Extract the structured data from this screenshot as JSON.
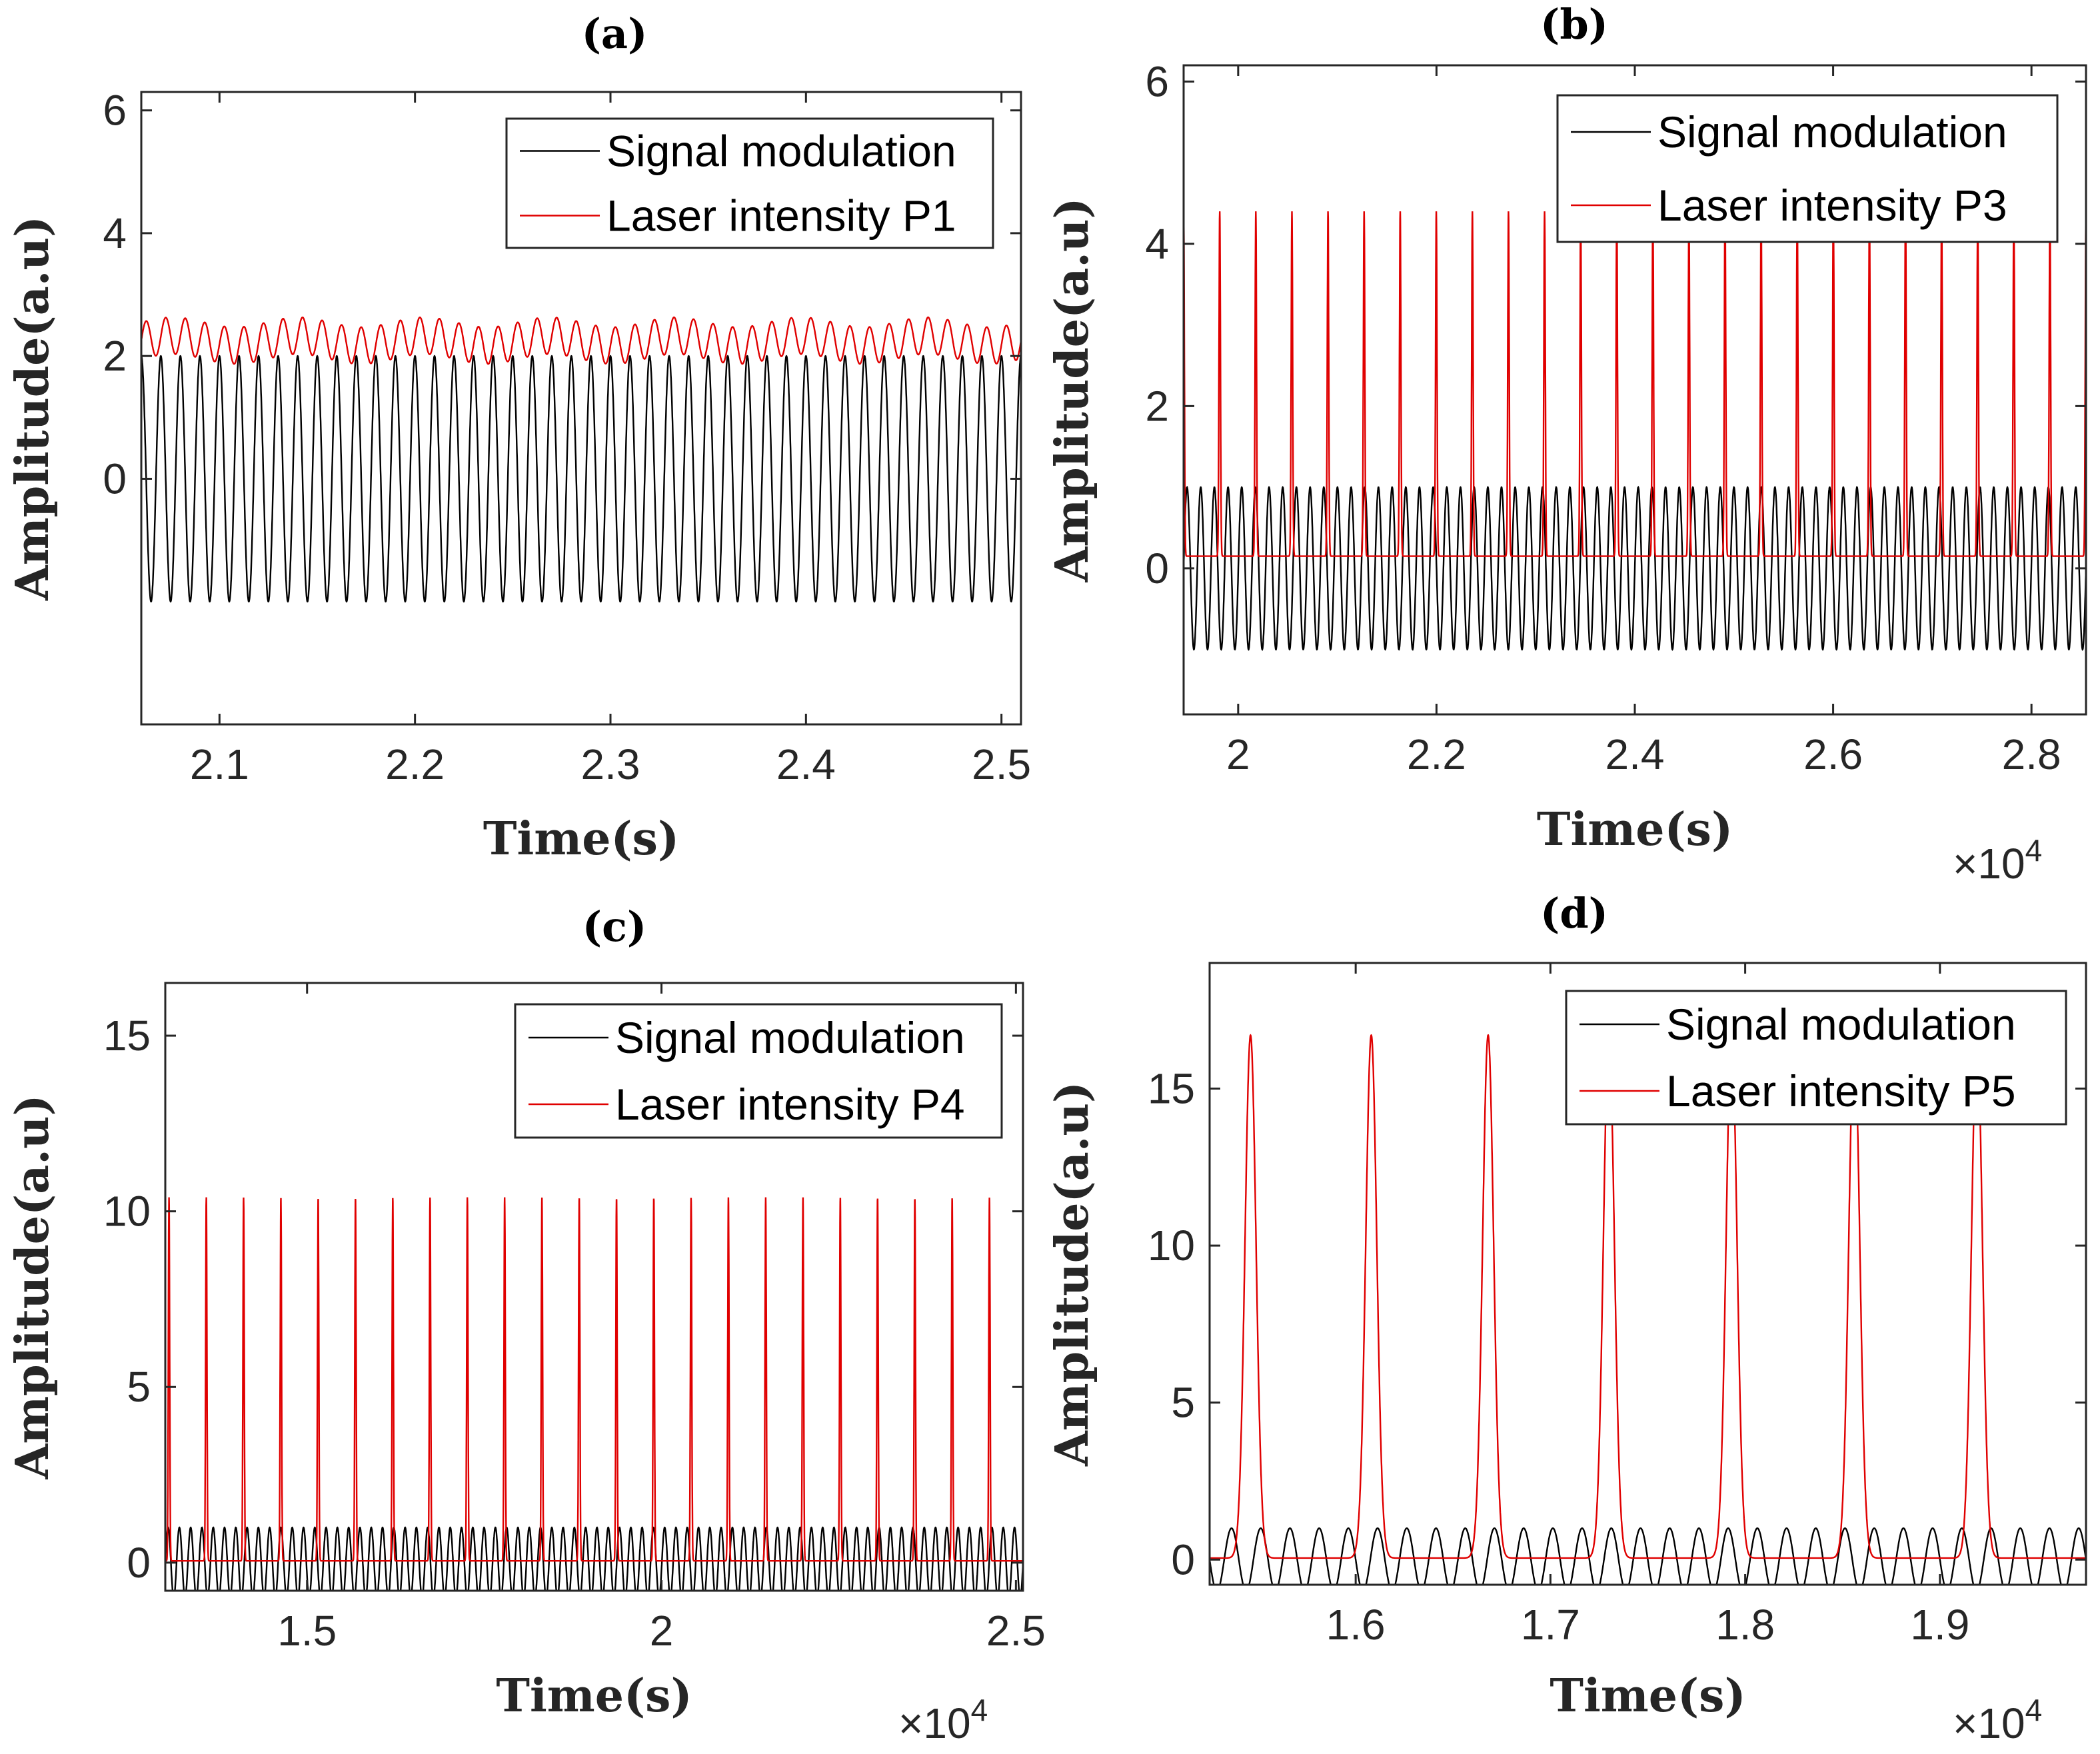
{
  "chart_data": [
    {
      "id": "a",
      "type": "line",
      "title": "(a)",
      "xlabel": "Time(s)",
      "ylabel": "Amplitude(a.u)",
      "xlim": [
        2.06,
        2.51
      ],
      "ylim": [
        -4,
        6.3
      ],
      "xticks": [
        2.1,
        2.2,
        2.3,
        2.4,
        2.5
      ],
      "xtick_labels": [
        "2.1",
        "2.2",
        "2.3",
        "2.4",
        "2.5"
      ],
      "yticks": [
        0,
        2,
        4,
        6
      ],
      "ytick_labels": [
        "0",
        "2",
        "4",
        "6"
      ],
      "x_exponent": "",
      "legend": [
        "Signal modulation",
        "Laser intensity P1"
      ],
      "legend_position": "top-right",
      "series": [
        {
          "name": "Signal modulation",
          "color": "#000000",
          "kind": "sine",
          "amplitude": 2,
          "offset": 0,
          "cycles": 45,
          "phase": 0.25
        },
        {
          "name": "Laser intensity P1",
          "color": "#e00000",
          "kind": "ripple",
          "base": 2.1,
          "peak": 2.55,
          "cycles": 45,
          "phase": 0.25
        }
      ]
    },
    {
      "id": "b",
      "type": "line",
      "title": "(b)",
      "xlabel": "Time(s)",
      "ylabel": "Amplitude(a.u)",
      "xlim": [
        1.945,
        2.855
      ],
      "ylim": [
        -1.8,
        6.2
      ],
      "xticks": [
        2.0,
        2.2,
        2.4,
        2.6,
        2.8
      ],
      "xtick_labels": [
        "2",
        "2.2",
        "2.4",
        "2.6",
        "2.8"
      ],
      "yticks": [
        0,
        2,
        4,
        6
      ],
      "ytick_labels": [
        "0",
        "2",
        "4",
        "6"
      ],
      "x_exponent": "×10^4",
      "legend": [
        "Signal modulation",
        "Laser intensity P3"
      ],
      "legend_position": "top-right",
      "series": [
        {
          "name": "Signal modulation",
          "color": "#000000",
          "kind": "sine",
          "amplitude": 1,
          "offset": 0,
          "cycles": 66,
          "phase": 0
        },
        {
          "name": "Laser intensity P3",
          "color": "#e00000",
          "kind": "spikes",
          "base": 0.15,
          "peak": 4.4,
          "spikes": 25,
          "width": 0.08,
          "phase": 0
        }
      ]
    },
    {
      "id": "c",
      "type": "line",
      "title": "(c)",
      "xlabel": "Time(s)",
      "ylabel": "Amplitude(a.u)",
      "xlim": [
        1.3,
        2.51
      ],
      "ylim": [
        -0.8,
        16.5
      ],
      "xticks": [
        1.5,
        2.0,
        2.5
      ],
      "xtick_labels": [
        "1.5",
        "2",
        "2.5"
      ],
      "yticks": [
        0,
        5,
        10,
        15
      ],
      "ytick_labels": [
        "0",
        "5",
        "10",
        "15"
      ],
      "x_exponent": "×10^4",
      "legend": [
        "Signal modulation",
        "Laser intensity P4"
      ],
      "legend_position": "top-right",
      "series": [
        {
          "name": "Signal modulation",
          "color": "#000000",
          "kind": "sine",
          "amplitude": 1,
          "offset": 0,
          "cycles": 76,
          "phase": 0
        },
        {
          "name": "Laser intensity P4",
          "color": "#e00000",
          "kind": "spikes",
          "base": 0.05,
          "peak": 10.4,
          "spikes": 23,
          "width": 0.07,
          "phase": 0.9
        }
      ]
    },
    {
      "id": "d",
      "type": "line",
      "title": "(d)",
      "xlabel": "Time(s)",
      "ylabel": "Amplitude(a.u)",
      "xlim": [
        1.525,
        1.975
      ],
      "ylim": [
        -0.8,
        19
      ],
      "xticks": [
        1.6,
        1.7,
        1.8,
        1.9
      ],
      "xtick_labels": [
        "1.6",
        "1.7",
        "1.8",
        "1.9"
      ],
      "yticks": [
        0,
        5,
        10,
        15
      ],
      "ytick_labels": [
        "0",
        "5",
        "10",
        "15"
      ],
      "x_exponent": "×10^4",
      "legend": [
        "Signal modulation",
        "Laser intensity P5"
      ],
      "legend_position": "top-right",
      "series": [
        {
          "name": "Signal modulation",
          "color": "#000000",
          "kind": "sine",
          "amplitude": 1,
          "offset": 0,
          "cycles": 30,
          "phase": 0.5
        },
        {
          "name": "Laser intensity P5",
          "color": "#e00000",
          "kind": "pulses",
          "base": 0.05,
          "peak": 16.7,
          "centers": [
            1.546,
            1.608,
            1.668,
            1.73,
            1.793,
            1.856,
            1.919
          ],
          "width": 0.004
        }
      ]
    }
  ],
  "exponent_labels": {
    "b": "×10",
    "c": "×10",
    "d": "×10",
    "power": "4"
  }
}
